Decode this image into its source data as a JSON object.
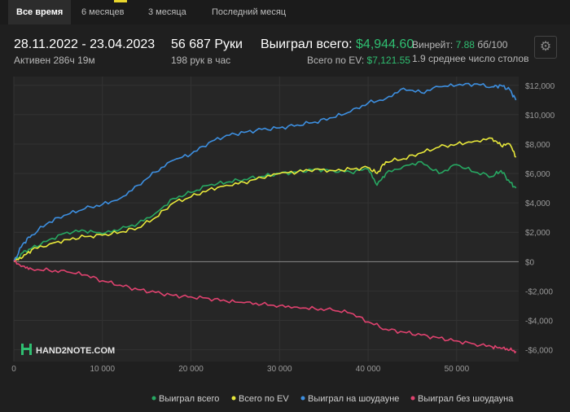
{
  "tabs": [
    {
      "label": "Все время",
      "active": true
    },
    {
      "label": "6 месяцев",
      "active": false
    },
    {
      "label": "3 месяца",
      "active": false
    },
    {
      "label": "Последний месяц",
      "active": false
    }
  ],
  "stats": {
    "period": "28.11.2022 - 23.04.2023",
    "active": "Активен 286ч 19м",
    "hands": "56 687 Руки",
    "hands_per_hour": "198 рук в час",
    "won_total_label": "Выиграл всего:",
    "won_total_value": "$4,944.60",
    "ev_label": "Всего по EV:",
    "ev_value": "$7,121.55",
    "winrate_label": "Винрейт:",
    "winrate_value": "7.88",
    "winrate_unit": "бб/100",
    "tables": "1.9 среднее число столов"
  },
  "icons": {
    "settings": "gear-icon",
    "logo": "hand2note-logo-icon"
  },
  "logo_text": "HAND2NOTE.COM",
  "colors": {
    "won_total": "#27a862",
    "ev": "#e8e83a",
    "showdown": "#3d8fe0",
    "non_showdown": "#e0426f",
    "accent_green": "#2fbf71"
  },
  "chart_data": {
    "type": "line",
    "xlim": [
      0,
      57000
    ],
    "ylim": [
      -6800,
      12600
    ],
    "x_ticks": [
      0,
      10000,
      20000,
      30000,
      40000,
      50000
    ],
    "x_tick_labels": [
      "0",
      "10 000",
      "20 000",
      "30 000",
      "40 000",
      "50 000"
    ],
    "y_ticks": [
      -6000,
      -4000,
      -2000,
      0,
      2000,
      4000,
      6000,
      8000,
      10000,
      12000
    ],
    "y_tick_labels": [
      "-$6,000",
      "-$4,000",
      "-$2,000",
      "$0",
      "$2,000",
      "$4,000",
      "$6,000",
      "$8,000",
      "$10,000",
      "$12,000"
    ],
    "grid": true,
    "legend_position": "bottom-right",
    "series": [
      {
        "name": "Выиграл всего",
        "color_key": "won_total",
        "x": [
          0,
          1000,
          2000,
          4000,
          6000,
          8000,
          10000,
          12000,
          14000,
          16000,
          18000,
          20000,
          22000,
          24000,
          26000,
          28000,
          30000,
          32000,
          34000,
          36000,
          38000,
          40000,
          41000,
          42000,
          44000,
          46000,
          48000,
          50000,
          52000,
          54000,
          55000,
          56000,
          56687
        ],
        "y": [
          0,
          600,
          900,
          1500,
          2000,
          2100,
          1900,
          2200,
          2600,
          3300,
          4300,
          4700,
          5200,
          5400,
          5600,
          5800,
          6000,
          6100,
          6300,
          6200,
          6100,
          6300,
          5200,
          6000,
          6500,
          6800,
          6000,
          6600,
          6100,
          5800,
          6200,
          5400,
          5000
        ]
      },
      {
        "name": "Всего по EV",
        "color_key": "ev",
        "x": [
          0,
          1000,
          2000,
          4000,
          6000,
          8000,
          10000,
          12000,
          14000,
          16000,
          18000,
          20000,
          22000,
          24000,
          26000,
          28000,
          30000,
          32000,
          34000,
          36000,
          38000,
          40000,
          41000,
          42000,
          44000,
          46000,
          48000,
          50000,
          52000,
          54000,
          55000,
          56000,
          56687
        ],
        "y": [
          0,
          300,
          800,
          1200,
          1500,
          1700,
          1800,
          2000,
          2300,
          3000,
          4000,
          4400,
          4900,
          5200,
          5400,
          5700,
          6000,
          6100,
          6300,
          6200,
          6300,
          6400,
          6000,
          6800,
          7000,
          7400,
          7800,
          8000,
          8200,
          8400,
          7900,
          8000,
          7100
        ]
      },
      {
        "name": "Выиграл на шоудауне",
        "color_key": "showdown",
        "x": [
          0,
          1000,
          2000,
          4000,
          6000,
          8000,
          10000,
          12000,
          14000,
          16000,
          18000,
          20000,
          22000,
          24000,
          26000,
          28000,
          30000,
          32000,
          34000,
          36000,
          38000,
          40000,
          42000,
          44000,
          46000,
          48000,
          50000,
          52000,
          54000,
          55000,
          56000,
          56687
        ],
        "y": [
          0,
          1200,
          1800,
          2700,
          3200,
          3600,
          3900,
          4300,
          5200,
          6100,
          6900,
          7300,
          8100,
          8600,
          8800,
          9000,
          9100,
          9300,
          9500,
          9800,
          10200,
          10800,
          11100,
          11800,
          11500,
          11900,
          12000,
          12100,
          11900,
          12000,
          11700,
          11000
        ]
      },
      {
        "name": "Выиграл без шоудауна",
        "color_key": "non_showdown",
        "x": [
          0,
          1000,
          2000,
          4000,
          6000,
          8000,
          10000,
          12000,
          14000,
          16000,
          18000,
          20000,
          22000,
          24000,
          26000,
          28000,
          30000,
          32000,
          34000,
          36000,
          38000,
          40000,
          42000,
          44000,
          46000,
          48000,
          50000,
          52000,
          54000,
          55000,
          56000,
          56687
        ],
        "y": [
          0,
          -300,
          -500,
          -600,
          -700,
          -900,
          -1300,
          -1600,
          -1900,
          -2100,
          -2300,
          -2400,
          -2500,
          -2700,
          -2800,
          -2900,
          -3000,
          -3100,
          -3200,
          -3300,
          -3500,
          -4100,
          -4600,
          -4800,
          -5000,
          -5200,
          -5400,
          -5600,
          -5800,
          -5900,
          -6000,
          -6100
        ]
      }
    ]
  }
}
